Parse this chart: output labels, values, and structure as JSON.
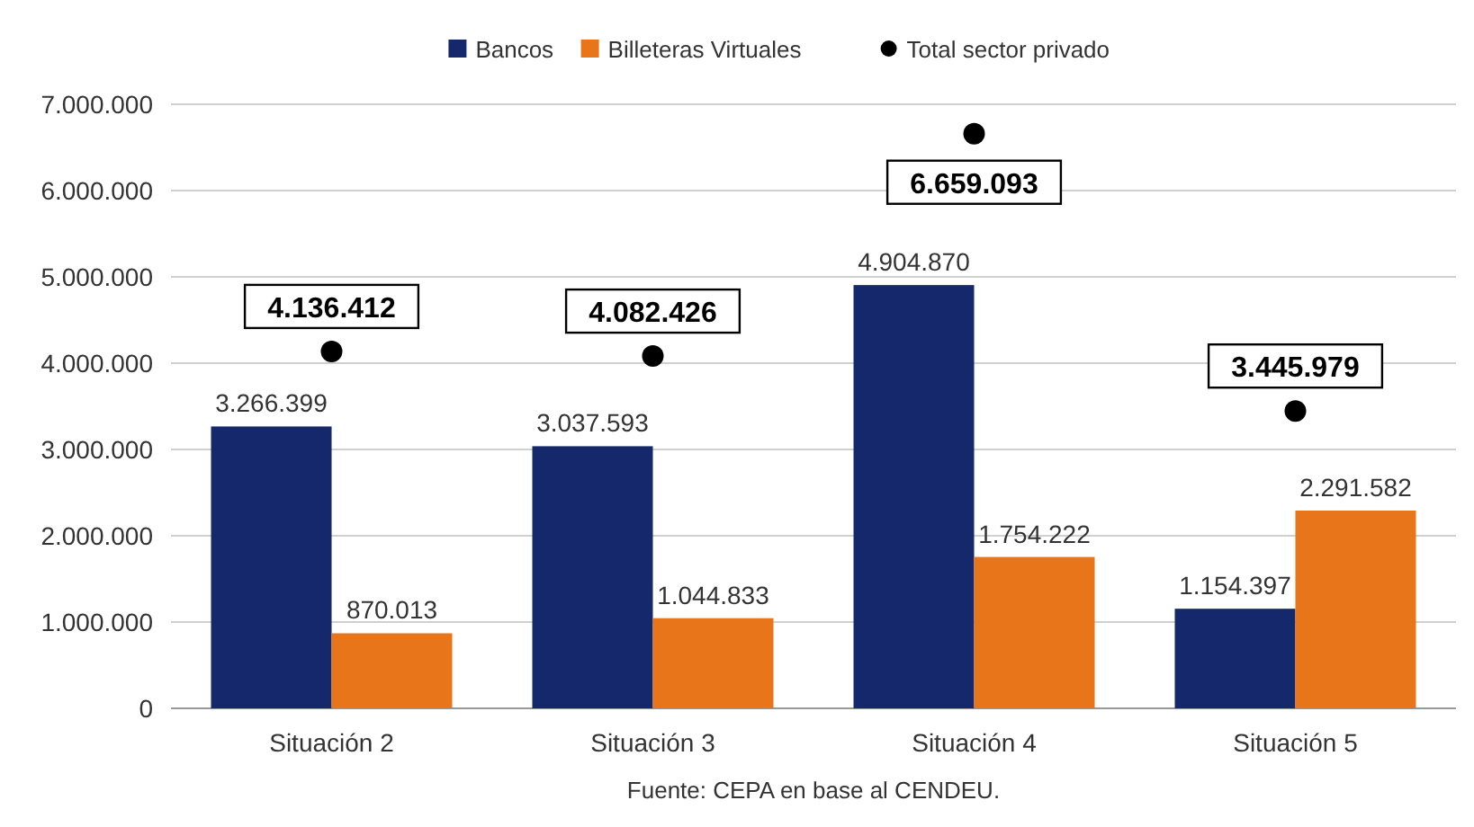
{
  "chart_data": {
    "type": "bar",
    "categories": [
      "Situación 2",
      "Situación 3",
      "Situación 4",
      "Situación 5"
    ],
    "series": [
      {
        "name": "Bancos",
        "color": "#14286b",
        "values": [
          3266399,
          3037593,
          4904870,
          1154397
        ],
        "value_labels": [
          "3.266.399",
          "3.037.593",
          "4.904.870",
          "1.154.397"
        ]
      },
      {
        "name": "Billeteras Virtuales",
        "color": "#e8751a",
        "values": [
          870013,
          1044833,
          1754222,
          2291582
        ],
        "value_labels": [
          "870.013",
          "1.044.833",
          "1.754.222",
          "2.291.582"
        ]
      },
      {
        "name": "Total sector privado",
        "type": "scatter",
        "color": "#000000",
        "x": [
          "Situación 2",
          "Situación 3",
          "Situación 4",
          "Situación 5"
        ],
        "values": [
          4136412,
          4082426,
          6659093,
          3445979
        ],
        "value_labels": [
          "4.136.412",
          "4.082.426",
          "6.659.093",
          "3.445.979"
        ]
      }
    ],
    "ylim": [
      0,
      7000000
    ],
    "yticks": [
      0,
      {
        "value": 1000000,
        "label": "1.000.000"
      },
      {
        "value": 2000000,
        "label": "2.000.000"
      },
      {
        "value": 3000000,
        "label": "3.000.000"
      },
      {
        "value": 4000000,
        "label": "4.000.000"
      },
      {
        "value": 5000000,
        "label": "5.000.000"
      },
      {
        "value": 6000000,
        "label": "6.000.000"
      },
      {
        "value": 7000000,
        "label": "7.000.000"
      }
    ],
    "grid": "y",
    "legend": "top",
    "marker": "circle",
    "annotations": [
      "Fuente: CEPA en base al CENDEU."
    ]
  }
}
